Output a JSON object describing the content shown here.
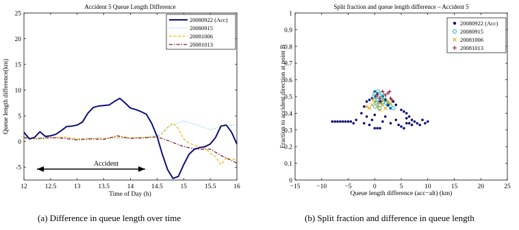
{
  "colors": {
    "acc": "#0a0a7a",
    "s0915": "#7fd8e8",
    "s1006": "#f0b400",
    "s1013": "#7a1030",
    "scatter_0915": "#20b8c8",
    "scatter_1006": "#d8a000",
    "scatter_1013": "#900020"
  },
  "captions": {
    "a": "(a)  Difference in queue length over time",
    "b": "(b)  Split fraction and difference in queue length"
  },
  "chart_data": [
    {
      "type": "line",
      "title": "Accident 5 Queue Length Difference",
      "xlabel": "Time of Day (h)",
      "ylabel": "Queue length difference(km)",
      "xlim": [
        12,
        16
      ],
      "ylim": [
        -7.5,
        25
      ],
      "xticks": [
        "12",
        "12.5",
        "13",
        "13.5",
        "14",
        "14.5",
        "15",
        "15.5",
        "16"
      ],
      "yticks": [
        "-5",
        "0",
        "5",
        "10",
        "15",
        "20",
        "25"
      ],
      "legend": "top-right",
      "annotation": {
        "text": "Accident",
        "x_start": 12.6,
        "x_end": 14.35,
        "y": -5
      },
      "series": [
        {
          "name": "20080922 (Acc)",
          "style": "solid",
          "x": [
            12,
            12.1,
            12.2,
            12.3,
            12.4,
            12.5,
            12.6,
            12.7,
            12.8,
            12.9,
            13,
            13.1,
            13.2,
            13.3,
            13.4,
            13.5,
            13.6,
            13.7,
            13.8,
            13.9,
            14,
            14.1,
            14.2,
            14.3,
            14.4,
            14.5,
            14.6,
            14.7,
            14.8,
            14.9,
            15,
            15.1,
            15.2,
            15.3,
            15.4,
            15.5,
            15.6,
            15.7,
            15.8,
            15.9,
            16
          ],
          "y": [
            1.8,
            0.5,
            0.8,
            1.9,
            1.0,
            1.1,
            1.4,
            2.1,
            2.9,
            3.0,
            3.2,
            3.8,
            5.5,
            6.6,
            6.9,
            7.0,
            7.1,
            7.8,
            8.4,
            7.5,
            6.5,
            6.2,
            5.8,
            5.3,
            3.5,
            1.0,
            -2.5,
            -5.5,
            -7.2,
            -6.8,
            -4.5,
            -2.5,
            -1.5,
            -1.2,
            -1.0,
            -0.5,
            0.8,
            3.0,
            3.2,
            1.8,
            -0.5
          ]
        },
        {
          "name": "20080915",
          "style": "dotted",
          "x": [
            12,
            12.25,
            12.5,
            12.75,
            13,
            13.25,
            13.5,
            13.75,
            14,
            14.25,
            14.5,
            14.75,
            15,
            15.25,
            15.5,
            15.75,
            16
          ],
          "y": [
            0.5,
            0.4,
            0.6,
            0.8,
            0.4,
            0.6,
            0.7,
            0.5,
            0.6,
            0.8,
            1.2,
            3.0,
            4.0,
            3.2,
            2.3,
            3.0,
            3.3
          ]
        },
        {
          "name": "20081006",
          "style": "dashed",
          "x": [
            12,
            12.25,
            12.5,
            12.75,
            13,
            13.25,
            13.5,
            13.75,
            14,
            14.25,
            14.5,
            14.6,
            14.7,
            14.8,
            14.9,
            15,
            15.1,
            15.25,
            15.4,
            15.5,
            15.6,
            15.7,
            15.8,
            15.9,
            16
          ],
          "y": [
            0.6,
            0.5,
            0.7,
            0.9,
            0.5,
            0.6,
            0.6,
            0.8,
            0.7,
            0.8,
            0.9,
            1.5,
            2.8,
            3.6,
            2.5,
            0.5,
            -0.3,
            -0.9,
            -1.3,
            -2.3,
            -3.0,
            -4.5,
            -3.2,
            -3.5,
            -3.4
          ]
        },
        {
          "name": "20081013",
          "style": "dashdot",
          "x": [
            12,
            12.25,
            12.5,
            12.75,
            13,
            13.25,
            13.5,
            13.75,
            14,
            14.25,
            14.5,
            14.75,
            15,
            15.25,
            15.5,
            15.75,
            16
          ],
          "y": [
            0.8,
            0.6,
            0.8,
            0.6,
            0.3,
            0.5,
            0.4,
            1.1,
            0.6,
            0.7,
            0.9,
            0.0,
            -1.0,
            -1.5,
            -1.5,
            -3.0,
            -4.2
          ]
        }
      ]
    },
    {
      "type": "scatter",
      "title": "Split fraction and queue length difference – Accident 5",
      "xlabel": "Queue length difference (acc−alt) (km)",
      "ylabel": "Fraction to accident direction at point B",
      "xlim": [
        -15,
        25
      ],
      "ylim": [
        0,
        1
      ],
      "xticks": [
        "−15",
        "−10",
        "−5",
        "0",
        "5",
        "10",
        "15",
        "20",
        "25"
      ],
      "yticks": [
        "0",
        "0.1",
        "0.2",
        "0.3",
        "0.4",
        "0.5",
        "0.6",
        "0.7",
        "0.8",
        "0.9",
        "1"
      ],
      "legend": "top-right",
      "series": [
        {
          "name": "20080922 (Acc)",
          "marker": "dot",
          "points": [
            [
              -8.0,
              0.35
            ],
            [
              -7.5,
              0.35
            ],
            [
              -7.0,
              0.35
            ],
            [
              -6.5,
              0.35
            ],
            [
              -6.0,
              0.35
            ],
            [
              -5.5,
              0.35
            ],
            [
              -5.0,
              0.35
            ],
            [
              -4.5,
              0.35
            ],
            [
              -4.0,
              0.34
            ],
            [
              -3.5,
              0.36
            ],
            [
              -2.5,
              0.4
            ],
            [
              -2.0,
              0.34
            ],
            [
              -1.5,
              0.38
            ],
            [
              -1.0,
              0.33
            ],
            [
              -0.5,
              0.36
            ],
            [
              0.0,
              0.39
            ],
            [
              0.0,
              0.31
            ],
            [
              0.5,
              0.31
            ],
            [
              1.0,
              0.31
            ],
            [
              1.5,
              0.35
            ],
            [
              2.0,
              0.38
            ],
            [
              3.0,
              0.34
            ],
            [
              4.0,
              0.36
            ],
            [
              4.5,
              0.33
            ],
            [
              5.0,
              0.32
            ],
            [
              5.5,
              0.31
            ],
            [
              6.0,
              0.34
            ],
            [
              6.0,
              0.37
            ],
            [
              6.5,
              0.38
            ],
            [
              6.5,
              0.34
            ],
            [
              7.0,
              0.33
            ],
            [
              7.0,
              0.36
            ],
            [
              7.5,
              0.35
            ],
            [
              8.0,
              0.34
            ],
            [
              8.5,
              0.33
            ],
            [
              9.0,
              0.36
            ],
            [
              9.5,
              0.34
            ],
            [
              10.0,
              0.35
            ],
            [
              4.0,
              0.45
            ],
            [
              5.0,
              0.42
            ],
            [
              5.5,
              0.41
            ],
            [
              6.0,
              0.4
            ],
            [
              3.0,
              0.43
            ],
            [
              2.0,
              0.48
            ],
            [
              1.5,
              0.5
            ],
            [
              0.5,
              0.52
            ],
            [
              -0.5,
              0.49
            ],
            [
              -1.0,
              0.48
            ],
            [
              -1.5,
              0.47
            ],
            [
              -2.0,
              0.44
            ],
            [
              0.0,
              0.53
            ],
            [
              1.0,
              0.47
            ],
            [
              2.5,
              0.45
            ],
            [
              3.5,
              0.47
            ]
          ]
        },
        {
          "name": "20080915",
          "marker": "circle",
          "points": [
            [
              0.0,
              0.52
            ],
            [
              0.2,
              0.5
            ],
            [
              0.5,
              0.48
            ],
            [
              0.8,
              0.51
            ],
            [
              1.0,
              0.45
            ],
            [
              1.2,
              0.49
            ],
            [
              0.3,
              0.46
            ],
            [
              -0.2,
              0.5
            ],
            [
              0.6,
              0.53
            ],
            [
              1.5,
              0.47
            ],
            [
              2.0,
              0.48
            ],
            [
              2.5,
              0.45
            ],
            [
              3.0,
              0.44
            ],
            [
              3.5,
              0.43
            ],
            [
              0.1,
              0.44
            ],
            [
              0.4,
              0.47
            ],
            [
              1.8,
              0.5
            ],
            [
              2.2,
              0.46
            ],
            [
              0.9,
              0.43
            ],
            [
              1.4,
              0.52
            ]
          ]
        },
        {
          "name": "20081006",
          "marker": "x",
          "points": [
            [
              -1.5,
              0.44
            ],
            [
              -1.0,
              0.43
            ],
            [
              -0.5,
              0.45
            ],
            [
              0.0,
              0.47
            ],
            [
              0.5,
              0.44
            ],
            [
              1.0,
              0.42
            ],
            [
              1.5,
              0.45
            ],
            [
              2.0,
              0.43
            ],
            [
              2.5,
              0.47
            ],
            [
              3.0,
              0.46
            ],
            [
              -0.3,
              0.48
            ],
            [
              0.8,
              0.46
            ],
            [
              1.7,
              0.48
            ]
          ]
        },
        {
          "name": "20081013",
          "marker": "plus",
          "points": [
            [
              0.5,
              0.51
            ],
            [
              1.0,
              0.49
            ],
            [
              1.5,
              0.53
            ],
            [
              2.0,
              0.51
            ],
            [
              2.5,
              0.52
            ],
            [
              3.0,
              0.49
            ],
            [
              1.2,
              0.47
            ],
            [
              2.8,
              0.53
            ],
            [
              0.2,
              0.5
            ],
            [
              3.2,
              0.48
            ]
          ]
        }
      ]
    }
  ]
}
